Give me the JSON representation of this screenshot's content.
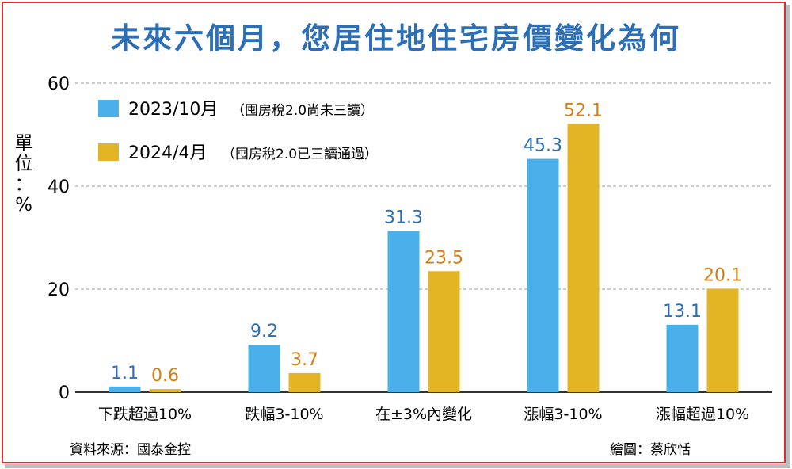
{
  "title": "未來六個月，您居住地住宅房價變化為何",
  "unit_label": [
    "單",
    "位",
    "：",
    "%"
  ],
  "source": "資料來源：國泰金控",
  "credit": "繪圖：蔡欣恬",
  "colors": {
    "series1": "#4bb0ea",
    "series2": "#e3b424",
    "label1": "#2c6fb7",
    "label2": "#d47f12",
    "frame": "#e32a2a",
    "grid": "#9a9a9a"
  },
  "chart_data": {
    "type": "bar",
    "categories": [
      "下跌超過10%",
      "跌幅3-10%",
      "在±3%內變化",
      "漲幅3-10%",
      "漲幅超過10%"
    ],
    "series": [
      {
        "name": "2023/10月",
        "note": "（囤房稅2.0尚未三讀）",
        "values": [
          1.1,
          9.2,
          31.3,
          45.3,
          13.1
        ],
        "labels": [
          "1.1",
          "9.2",
          "31.3",
          "45.3",
          "13.1"
        ]
      },
      {
        "name": "2024/4月",
        "note": "（囤房稅2.0已三讀通過）",
        "values": [
          0.6,
          3.7,
          23.5,
          52.1,
          20.1
        ],
        "labels": [
          "0.6",
          "3.7",
          "23.5",
          "52.1",
          "20.1"
        ]
      }
    ],
    "ylim": [
      0,
      60
    ],
    "yticks": [
      0,
      20,
      40,
      60
    ],
    "ylabel": "單位：%",
    "grid": true,
    "legend": "top-left"
  }
}
